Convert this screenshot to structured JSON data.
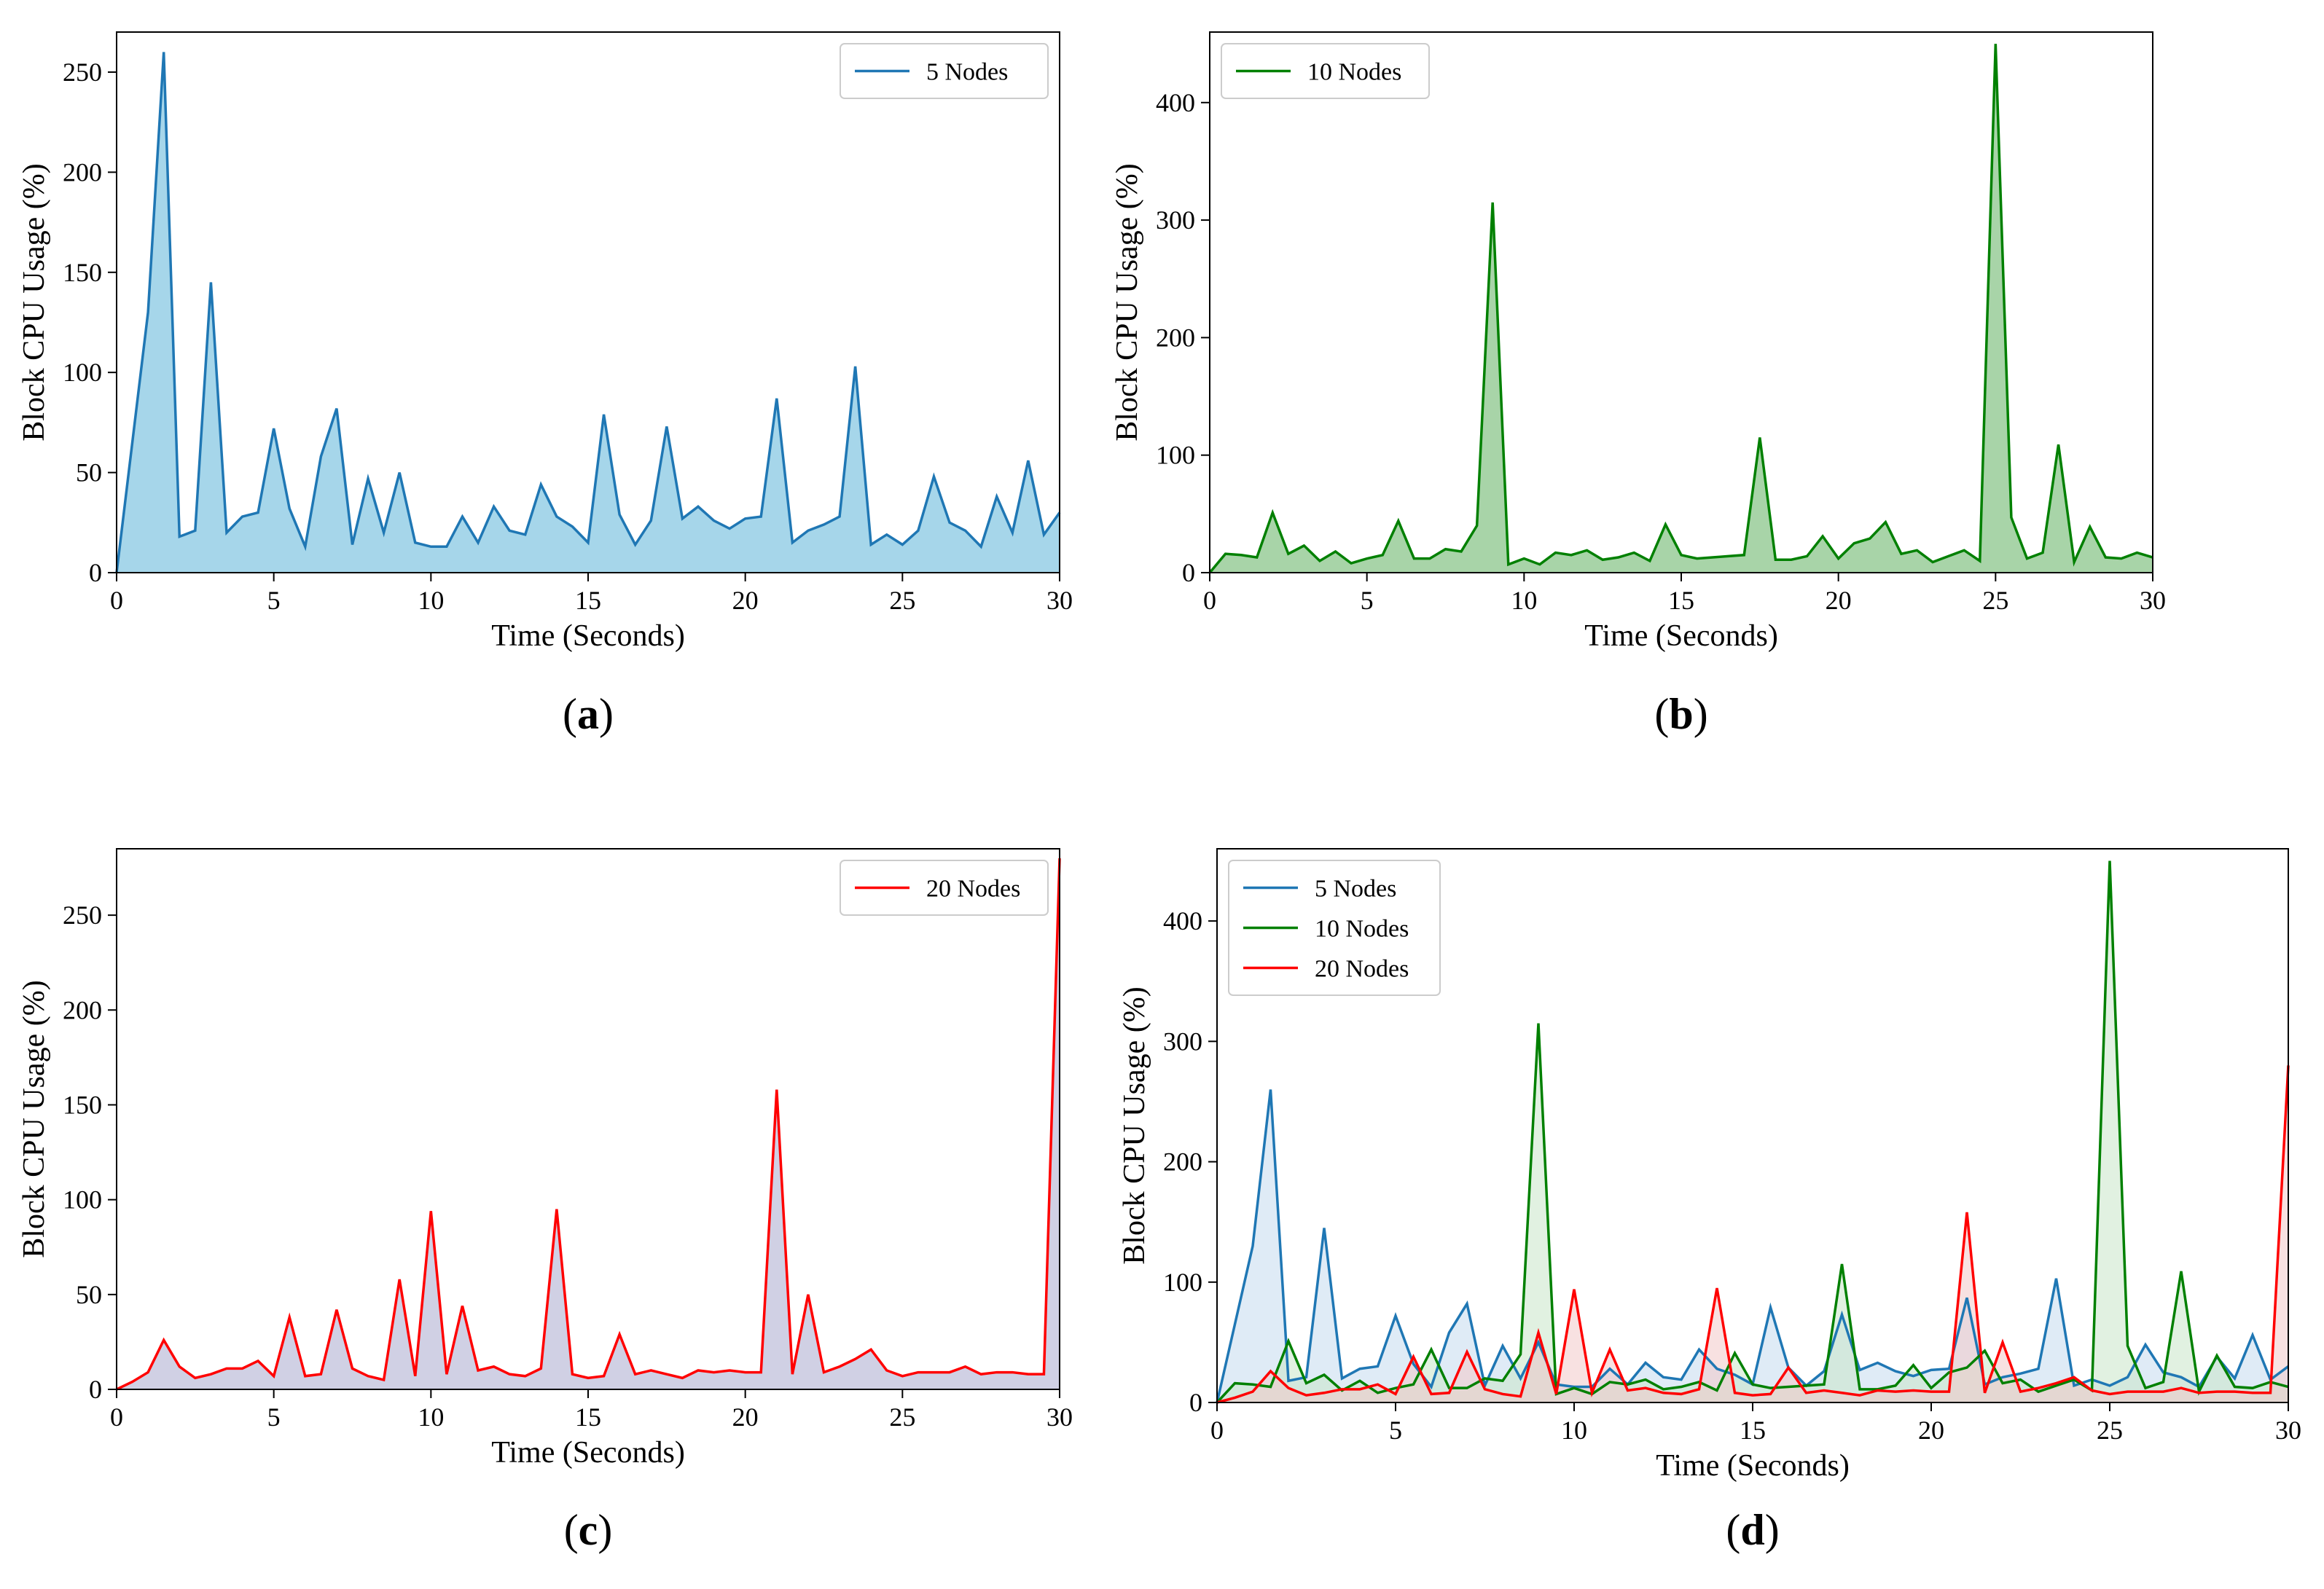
{
  "chart_data": [
    {
      "id": "a",
      "type": "area",
      "panel_label": "a",
      "xlabel": "Time (Seconds)",
      "ylabel": "Block CPU Usage (%)",
      "xlim": [
        0,
        30
      ],
      "ylim": [
        0,
        270
      ],
      "xticks": [
        0,
        5,
        10,
        15,
        20,
        25,
        30
      ],
      "yticks": [
        0,
        50,
        100,
        150,
        200,
        250
      ],
      "legend_position": "top-right",
      "series": [
        {
          "name": "5 Nodes",
          "color": "#1f77b4",
          "fill": "#a6d6ea",
          "x": [
            0,
            0.5,
            1,
            1.5,
            2,
            2.5,
            3,
            3.5,
            4,
            4.5,
            5,
            5.5,
            6,
            6.5,
            7,
            7.5,
            8,
            8.5,
            9,
            9.5,
            10,
            10.5,
            11,
            11.5,
            12,
            12.5,
            13,
            13.5,
            14,
            14.5,
            15,
            15.5,
            16,
            16.5,
            17,
            17.5,
            18,
            18.5,
            19,
            19.5,
            20,
            20.5,
            21,
            21.5,
            22,
            22.5,
            23,
            23.5,
            24,
            24.5,
            25,
            25.5,
            26,
            26.5,
            27,
            27.5,
            28,
            28.5,
            29,
            29.5,
            30
          ],
          "values": [
            0,
            65,
            130,
            260,
            18,
            21,
            145,
            20,
            28,
            30,
            72,
            32,
            13,
            58,
            82,
            14,
            47,
            20,
            50,
            15,
            13,
            13,
            28,
            15,
            33,
            21,
            19,
            44,
            28,
            23,
            15,
            79,
            29,
            14,
            26,
            73,
            27,
            33,
            26,
            22,
            27,
            28,
            87,
            15,
            21,
            24,
            28,
            103,
            14,
            19,
            14,
            21,
            48,
            25,
            21,
            13,
            38,
            20,
            56,
            19,
            30
          ]
        }
      ]
    },
    {
      "id": "b",
      "type": "area",
      "panel_label": "b",
      "xlabel": "Time (Seconds)",
      "ylabel": "Block CPU Usage (%)",
      "xlim": [
        0,
        30
      ],
      "ylim": [
        0,
        460
      ],
      "xticks": [
        0,
        5,
        10,
        15,
        20,
        25,
        30
      ],
      "yticks": [
        0,
        100,
        200,
        300,
        400
      ],
      "legend_position": "top-left",
      "series": [
        {
          "name": "10 Nodes",
          "color": "#008000",
          "fill": "#a8d4a8",
          "x": [
            0,
            0.5,
            1,
            1.5,
            2,
            2.5,
            3,
            3.5,
            4,
            4.5,
            5,
            5.5,
            6,
            6.5,
            7,
            7.5,
            8,
            8.5,
            9,
            9.5,
            10,
            10.5,
            11,
            11.5,
            12,
            12.5,
            13,
            13.5,
            14,
            14.5,
            15,
            15.5,
            16,
            16.5,
            17,
            17.5,
            18,
            18.5,
            19,
            19.5,
            20,
            20.5,
            21,
            21.5,
            22,
            22.5,
            23,
            23.5,
            24,
            24.5,
            25,
            25.5,
            26,
            26.5,
            27,
            27.5,
            28,
            28.5,
            29,
            29.5,
            30
          ],
          "values": [
            0,
            16,
            15,
            13,
            51,
            16,
            23,
            10,
            18,
            8,
            12,
            15,
            44,
            12,
            12,
            20,
            18,
            40,
            315,
            7,
            12,
            7,
            17,
            15,
            19,
            11,
            13,
            17,
            10,
            41,
            15,
            12,
            13,
            14,
            15,
            115,
            11,
            11,
            14,
            31,
            12,
            25,
            29,
            43,
            16,
            19,
            9,
            14,
            19,
            10,
            450,
            47,
            12,
            17,
            109,
            9,
            39,
            13,
            12,
            17,
            13
          ]
        }
      ]
    },
    {
      "id": "c",
      "type": "area",
      "panel_label": "c",
      "xlabel": "Time (Seconds)",
      "ylabel": "Block CPU Usage (%)",
      "xlim": [
        0,
        30
      ],
      "ylim": [
        0,
        285
      ],
      "xticks": [
        0,
        5,
        10,
        15,
        20,
        25,
        30
      ],
      "yticks": [
        0,
        50,
        100,
        150,
        200,
        250
      ],
      "legend_position": "top-right",
      "series": [
        {
          "name": "20 Nodes",
          "color": "#ff0000",
          "fill": "#d0d0e4",
          "x": [
            0,
            0.5,
            1,
            1.5,
            2,
            2.5,
            3,
            3.5,
            4,
            4.5,
            5,
            5.5,
            6,
            6.5,
            7,
            7.5,
            8,
            8.5,
            9,
            9.5,
            10,
            10.5,
            11,
            11.5,
            12,
            12.5,
            13,
            13.5,
            14,
            14.5,
            15,
            15.5,
            16,
            16.5,
            17,
            17.5,
            18,
            18.5,
            19,
            19.5,
            20,
            20.5,
            21,
            21.5,
            22,
            22.5,
            23,
            23.5,
            24,
            24.5,
            25,
            25.5,
            26,
            26.5,
            27,
            27.5,
            28,
            28.5,
            29,
            29.5,
            30
          ],
          "values": [
            0,
            4,
            9,
            26,
            12,
            6,
            8,
            11,
            11,
            15,
            7,
            38,
            7,
            8,
            42,
            11,
            7,
            5,
            58,
            7,
            94,
            8,
            44,
            10,
            12,
            8,
            7,
            11,
            95,
            8,
            6,
            7,
            29,
            8,
            10,
            8,
            6,
            10,
            9,
            10,
            9,
            9,
            158,
            8,
            50,
            9,
            12,
            16,
            21,
            10,
            7,
            9,
            9,
            9,
            12,
            8,
            9,
            9,
            8,
            8,
            280
          ]
        }
      ]
    },
    {
      "id": "d",
      "type": "area",
      "panel_label": "d",
      "xlabel": "Time (Seconds)",
      "ylabel": "Block CPU Usage (%)",
      "xlim": [
        0,
        30
      ],
      "ylim": [
        0,
        460
      ],
      "xticks": [
        0,
        5,
        10,
        15,
        20,
        25,
        30
      ],
      "yticks": [
        0,
        100,
        200,
        300,
        400
      ],
      "legend_position": "top-left",
      "series": [
        {
          "name": "5 Nodes",
          "color": "#1f77b4",
          "fill": "#c5dbee",
          "x": [
            0,
            0.5,
            1,
            1.5,
            2,
            2.5,
            3,
            3.5,
            4,
            4.5,
            5,
            5.5,
            6,
            6.5,
            7,
            7.5,
            8,
            8.5,
            9,
            9.5,
            10,
            10.5,
            11,
            11.5,
            12,
            12.5,
            13,
            13.5,
            14,
            14.5,
            15,
            15.5,
            16,
            16.5,
            17,
            17.5,
            18,
            18.5,
            19,
            19.5,
            20,
            20.5,
            21,
            21.5,
            22,
            22.5,
            23,
            23.5,
            24,
            24.5,
            25,
            25.5,
            26,
            26.5,
            27,
            27.5,
            28,
            28.5,
            29,
            29.5,
            30
          ],
          "values": [
            0,
            65,
            130,
            260,
            18,
            21,
            145,
            20,
            28,
            30,
            72,
            32,
            13,
            58,
            82,
            14,
            47,
            20,
            50,
            15,
            13,
            13,
            28,
            15,
            33,
            21,
            19,
            44,
            28,
            23,
            15,
            79,
            29,
            14,
            26,
            73,
            27,
            33,
            26,
            22,
            27,
            28,
            87,
            15,
            21,
            24,
            28,
            103,
            14,
            19,
            14,
            21,
            48,
            25,
            21,
            13,
            38,
            20,
            56,
            19,
            30
          ]
        },
        {
          "name": "10 Nodes",
          "color": "#008000",
          "fill": "#c8e6c8",
          "x": [
            0,
            0.5,
            1,
            1.5,
            2,
            2.5,
            3,
            3.5,
            4,
            4.5,
            5,
            5.5,
            6,
            6.5,
            7,
            7.5,
            8,
            8.5,
            9,
            9.5,
            10,
            10.5,
            11,
            11.5,
            12,
            12.5,
            13,
            13.5,
            14,
            14.5,
            15,
            15.5,
            16,
            16.5,
            17,
            17.5,
            18,
            18.5,
            19,
            19.5,
            20,
            20.5,
            21,
            21.5,
            22,
            22.5,
            23,
            23.5,
            24,
            24.5,
            25,
            25.5,
            26,
            26.5,
            27,
            27.5,
            28,
            28.5,
            29,
            29.5,
            30
          ],
          "values": [
            0,
            16,
            15,
            13,
            51,
            16,
            23,
            10,
            18,
            8,
            12,
            15,
            44,
            12,
            12,
            20,
            18,
            40,
            315,
            7,
            12,
            7,
            17,
            15,
            19,
            11,
            13,
            17,
            10,
            41,
            15,
            12,
            13,
            14,
            15,
            115,
            11,
            11,
            14,
            31,
            12,
            25,
            29,
            43,
            16,
            19,
            9,
            14,
            19,
            10,
            450,
            47,
            12,
            17,
            109,
            9,
            39,
            13,
            12,
            17,
            13
          ]
        },
        {
          "name": "20 Nodes",
          "color": "#ff0000",
          "fill": "#f3c8c8",
          "x": [
            0,
            0.5,
            1,
            1.5,
            2,
            2.5,
            3,
            3.5,
            4,
            4.5,
            5,
            5.5,
            6,
            6.5,
            7,
            7.5,
            8,
            8.5,
            9,
            9.5,
            10,
            10.5,
            11,
            11.5,
            12,
            12.5,
            13,
            13.5,
            14,
            14.5,
            15,
            15.5,
            16,
            16.5,
            17,
            17.5,
            18,
            18.5,
            19,
            19.5,
            20,
            20.5,
            21,
            21.5,
            22,
            22.5,
            23,
            23.5,
            24,
            24.5,
            25,
            25.5,
            26,
            26.5,
            27,
            27.5,
            28,
            28.5,
            29,
            29.5,
            30
          ],
          "values": [
            0,
            4,
            9,
            26,
            12,
            6,
            8,
            11,
            11,
            15,
            7,
            38,
            7,
            8,
            42,
            11,
            7,
            5,
            58,
            7,
            94,
            8,
            44,
            10,
            12,
            8,
            7,
            11,
            95,
            8,
            6,
            7,
            29,
            8,
            10,
            8,
            6,
            10,
            9,
            10,
            9,
            9,
            158,
            8,
            50,
            9,
            12,
            16,
            21,
            10,
            7,
            9,
            9,
            9,
            12,
            8,
            9,
            9,
            8,
            8,
            280
          ]
        }
      ]
    }
  ]
}
